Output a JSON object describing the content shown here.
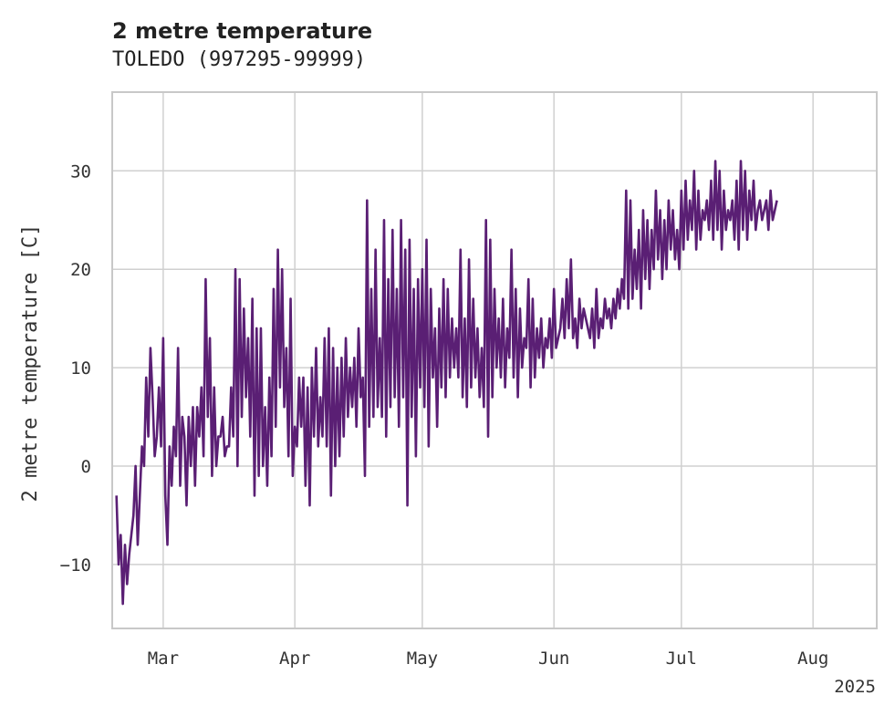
{
  "colors": {
    "line": "#5a1f74",
    "grid": "#d0d0d0",
    "frame": "#c8c8c8"
  },
  "chart_data": {
    "type": "line",
    "title": "2 metre temperature",
    "subtitle": "TOLEDO (997295-99999)",
    "ylabel": "2 metre temperature [C]",
    "xlabel": "",
    "x_range": [
      "2025-02-17",
      "2025-08-16"
    ],
    "ylim": [
      -16.5,
      38
    ],
    "yticks": [
      -10,
      0,
      10,
      20,
      30
    ],
    "ytick_labels": [
      "−10",
      "0",
      "10",
      "20",
      "30"
    ],
    "xticks": [
      {
        "date": "2025-03-01",
        "label": "Mar"
      },
      {
        "date": "2025-04-01",
        "label": "Apr"
      },
      {
        "date": "2025-05-01",
        "label": "May"
      },
      {
        "date": "2025-06-01",
        "label": "Jun"
      },
      {
        "date": "2025-07-01",
        "label": "Jul"
      },
      {
        "date": "2025-08-01",
        "label": "Aug"
      }
    ],
    "year_label": "2025",
    "grid": true,
    "series": [
      {
        "sampling": "daily min/max (approx.)",
        "start_date": "2025-02-18",
        "values": [
          -3,
          -10,
          -7,
          -14,
          -8,
          -12,
          -9,
          -7,
          -5,
          0,
          -8,
          -3,
          2,
          0,
          9,
          3,
          12,
          7,
          1,
          3,
          8,
          2,
          13,
          -3,
          -8,
          2,
          -2,
          4,
          1,
          12,
          -2,
          5,
          3,
          -4,
          5,
          0,
          6,
          -2,
          6,
          3,
          8,
          1,
          19,
          5,
          13,
          -1,
          8,
          0,
          3,
          3,
          5,
          1,
          2,
          2,
          8,
          3,
          20,
          0,
          19,
          5,
          16,
          7,
          13,
          3,
          17,
          -3,
          14,
          -1,
          14,
          0,
          6,
          -2,
          9,
          1,
          18,
          4,
          22,
          8,
          20,
          6,
          12,
          1,
          17,
          -1,
          4,
          2,
          9,
          4,
          9,
          -2,
          8,
          -4,
          10,
          3,
          12,
          2,
          7,
          3,
          13,
          2,
          14,
          -3,
          12,
          0,
          10,
          1,
          11,
          3,
          13,
          5,
          10,
          6,
          11,
          4,
          14,
          7,
          9,
          -1,
          27,
          4,
          18,
          5,
          22,
          6,
          13,
          5,
          25,
          3,
          19,
          6,
          24,
          7,
          18,
          4,
          25,
          7,
          22,
          -4,
          23,
          5,
          18,
          1,
          19,
          8,
          20,
          6,
          23,
          2,
          18,
          9,
          14,
          4,
          16,
          8,
          19,
          7,
          18,
          9,
          15,
          10,
          14,
          9,
          22,
          7,
          15,
          6,
          21,
          8,
          17,
          9,
          14,
          7,
          12,
          6,
          25,
          3,
          23,
          7,
          18,
          10,
          15,
          9,
          17,
          8,
          14,
          11,
          22,
          9,
          18,
          7,
          16,
          10,
          13,
          12,
          19,
          8,
          17,
          9,
          14,
          11,
          15,
          10,
          13,
          12,
          15,
          11,
          18,
          12,
          13,
          14,
          17,
          13,
          19,
          14,
          21,
          13,
          15,
          12,
          17,
          14,
          16,
          15,
          14,
          13,
          16,
          12,
          18,
          13,
          15,
          14,
          17,
          15,
          16,
          14,
          17,
          15,
          18,
          16,
          19,
          17,
          28,
          16,
          27,
          17,
          22,
          18,
          24,
          16,
          26,
          19,
          25,
          18,
          24,
          20,
          28,
          21,
          26,
          19,
          25,
          20,
          27,
          22,
          26,
          21,
          24,
          20,
          28,
          22,
          29,
          23,
          27,
          24,
          30,
          22,
          28,
          23,
          26,
          25,
          27,
          24,
          29,
          23,
          31,
          24,
          30,
          22,
          28,
          24,
          26,
          25,
          27,
          23,
          29,
          22,
          31,
          24,
          30,
          23,
          28,
          25,
          29,
          24,
          26,
          27,
          25,
          26,
          27,
          24,
          28,
          25,
          26,
          27
        ]
      }
    ]
  }
}
